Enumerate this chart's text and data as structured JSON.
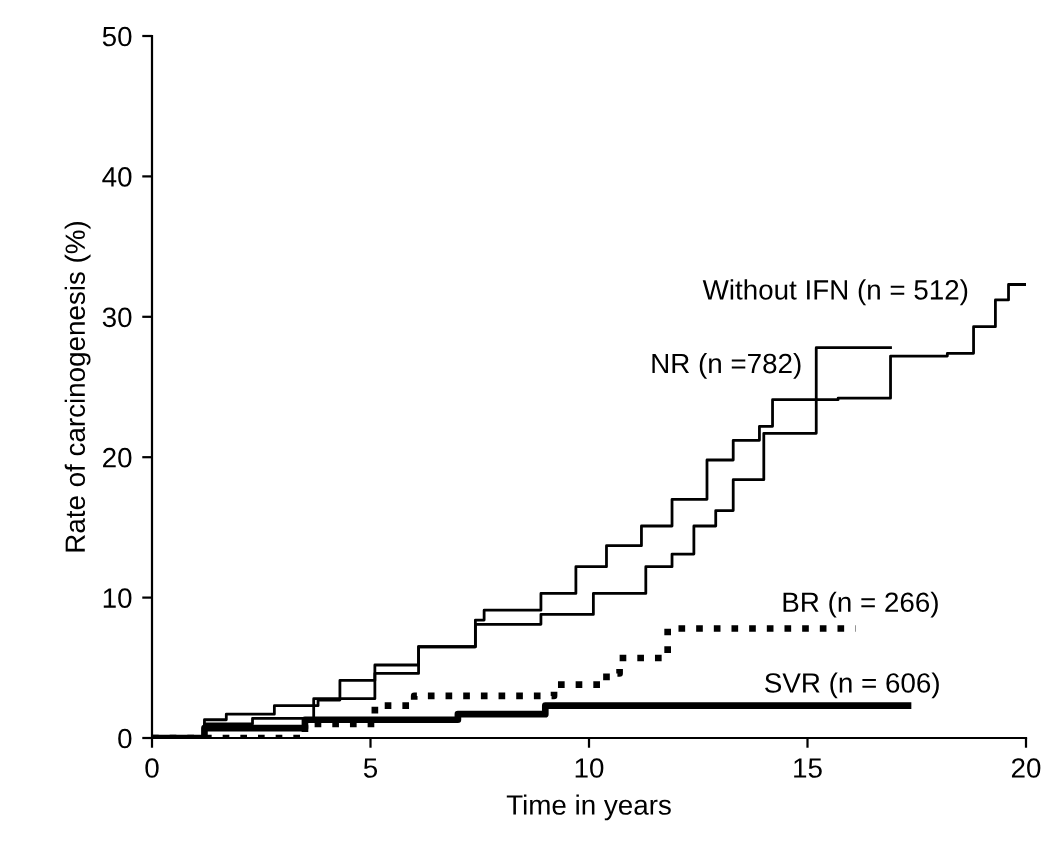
{
  "chart_data": {
    "type": "step",
    "xlabel": "Time in years",
    "ylabel": "Rate of carcinogenesis (%)",
    "xlim": [
      0,
      20
    ],
    "ylim": [
      0,
      50
    ],
    "xticks": [
      0,
      5,
      10,
      15,
      20
    ],
    "yticks": [
      0,
      10,
      20,
      30,
      40,
      50
    ],
    "grid": false,
    "legend": false,
    "series": [
      {
        "name": "Without IFN (n = 512)",
        "color": "#000000",
        "line_style": "solid",
        "x": [
          0,
          1.2,
          1.7,
          2.8,
          3.8,
          4.3,
          5.1,
          6.1,
          7.4,
          7.6,
          8.9,
          9.7,
          10.4,
          11.2,
          11.9,
          12.7,
          13.3,
          13.9,
          14.2,
          15.7,
          16.9,
          18.2,
          18.8,
          19.3,
          19.6,
          20
        ],
        "values": [
          0,
          1.3,
          1.7,
          2.3,
          2.7,
          4.1,
          4.6,
          6.5,
          8.4,
          9.1,
          10.3,
          12.2,
          13.7,
          15.1,
          17.0,
          19.8,
          21.2,
          22.2,
          24.1,
          24.2,
          27.2,
          27.4,
          29.3,
          31.2,
          32.3,
          32.3
        ]
      },
      {
        "name": "NR (n =782)",
        "color": "#000000",
        "line_style": "solid",
        "x": [
          0,
          1.2,
          2.3,
          3.7,
          5.1,
          6.1,
          7.4,
          8.9,
          10.1,
          11.3,
          11.9,
          12.4,
          12.9,
          13.3,
          14.0,
          15.2,
          16.9
        ],
        "values": [
          0,
          1.0,
          1.4,
          2.8,
          5.2,
          6.5,
          8.1,
          8.8,
          10.3,
          12.2,
          13.1,
          15.1,
          16.2,
          18.4,
          21.7,
          27.8,
          27.8
        ]
      },
      {
        "name": "BR (n = 266)",
        "color": "#000000",
        "line_style": "dotted",
        "x": [
          0,
          3.5,
          5.1,
          6.0,
          9.2,
          10.4,
          10.7,
          11.8,
          16.1
        ],
        "values": [
          0,
          1.0,
          2.3,
          3.0,
          3.8,
          4.6,
          5.7,
          7.8,
          7.8
        ]
      },
      {
        "name": "SVR (n = 606)",
        "color": "#000000",
        "line_style": "solid",
        "x": [
          0,
          1.2,
          3.5,
          7.0,
          9.0,
          17.3
        ],
        "values": [
          0,
          0.7,
          1.3,
          1.7,
          2.3,
          2.3
        ]
      }
    ]
  }
}
